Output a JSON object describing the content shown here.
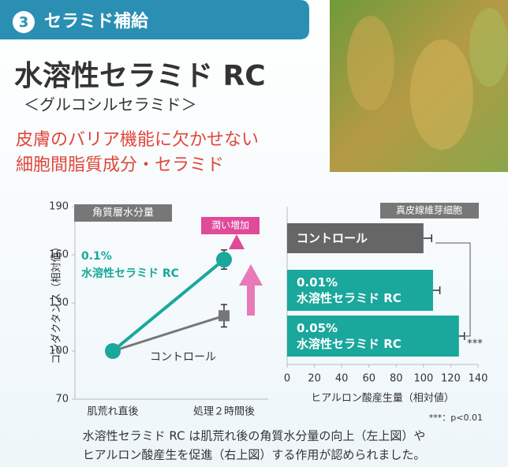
{
  "header": {
    "badge": "3",
    "title": "セラミド補給"
  },
  "heading": {
    "title": "水溶性セラミド RC",
    "subtitle": "＜グルコシルセラミド＞"
  },
  "tagline": [
    "皮膚のバリア機能に欠かせない",
    "細胞間脂質成分・セラミド"
  ],
  "chart_data": [
    {
      "type": "line",
      "title": "角質層水分量",
      "y_label": "コンダクタンス（相対値）",
      "categories": [
        "肌荒れ直後",
        "処理２時間後"
      ],
      "ylim": [
        70,
        190
      ],
      "yticks": [
        70,
        100,
        130,
        160,
        190
      ],
      "series": [
        {
          "name": "0.1%\n水溶性セラミド RC",
          "color": "#1aa79c",
          "values": [
            100,
            157
          ],
          "errors": [
            0,
            6
          ]
        },
        {
          "name": "コントロール",
          "color": "#777777",
          "values": [
            100,
            122
          ],
          "errors": [
            0,
            7
          ]
        }
      ],
      "annotation": "潤い増加"
    },
    {
      "type": "bar",
      "orientation": "horizontal",
      "title": "真皮線維芽細胞",
      "x_label": "ヒアルロン酸産生量（相対値）",
      "categories": [
        "コントロール",
        "0.01%\n水溶性セラミド RC",
        "0.05%\n水溶性セラミド RC"
      ],
      "values": [
        100,
        107,
        126
      ],
      "errors": [
        6,
        5,
        4
      ],
      "colors": [
        "#666666",
        "#1aa79c",
        "#1aa79c"
      ],
      "xlim": [
        0,
        140
      ],
      "xticks": [
        0,
        20,
        40,
        60,
        80,
        100,
        120,
        140
      ],
      "annotation": "***"
    }
  ],
  "footnote": "***：p<0.01",
  "caption": [
    "水溶性セラミド RC は肌荒れ後の角質水分量の向上（左上図）や",
    "ヒアルロン酸産生を促進（右上図）する作用が認められました。"
  ]
}
